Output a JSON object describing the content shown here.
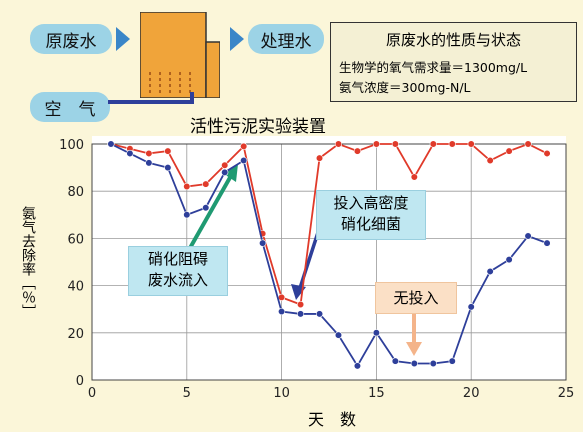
{
  "diagram": {
    "raw_water_label": "原废水",
    "treated_water_label": "处理水",
    "air_label": "空　气",
    "device_title": "活性污泥实验装置"
  },
  "properties": {
    "title": "原废水的性质与状态",
    "line1": "生物学的氧气需求量＝1300mg/L",
    "line2": "氨气浓度＝300mg-N/L"
  },
  "annotations": {
    "inhibitor": [
      "硝化阻碍",
      "废水流入"
    ],
    "nitrifier": [
      "投入高密度",
      "硝化细菌"
    ],
    "no_input": "无投入"
  },
  "colors": {
    "red_series": "#e03a2a",
    "blue_series": "#2e3f9a",
    "pill": "#9cd3e6",
    "tank": "#f0a43a"
  },
  "chart_data": {
    "type": "line",
    "xlabel": "天　数",
    "ylabel": "氨气去除率［％］",
    "xlim": [
      0,
      25
    ],
    "ylim": [
      0,
      100
    ],
    "xticks": [
      0,
      5,
      10,
      15,
      20,
      25
    ],
    "yticks": [
      0,
      20,
      40,
      60,
      80,
      100
    ],
    "grid": true,
    "series": [
      {
        "color": "#e03a2a",
        "x": [
          1,
          2,
          3,
          4,
          5,
          6,
          7,
          8,
          9,
          10,
          11,
          12,
          13,
          14,
          15,
          16,
          17,
          18,
          19,
          20,
          21,
          22,
          23,
          24
        ],
        "y": [
          100,
          98,
          96,
          97,
          82,
          83,
          91,
          99,
          62,
          35,
          32,
          94,
          100,
          97,
          100,
          100,
          86,
          100,
          100,
          100,
          93,
          97,
          100,
          96
        ]
      },
      {
        "color": "#2e3f9a",
        "x": [
          1,
          2,
          3,
          4,
          5,
          6,
          7,
          8,
          9,
          10,
          11,
          12,
          13,
          14,
          15,
          16,
          17,
          18,
          19,
          20,
          21,
          22,
          23,
          24
        ],
        "y": [
          100,
          96,
          92,
          90,
          70,
          73,
          88,
          93,
          58,
          29,
          28,
          28,
          19,
          6,
          20,
          8,
          7,
          7,
          8,
          31,
          46,
          51,
          61,
          58
        ]
      }
    ]
  }
}
